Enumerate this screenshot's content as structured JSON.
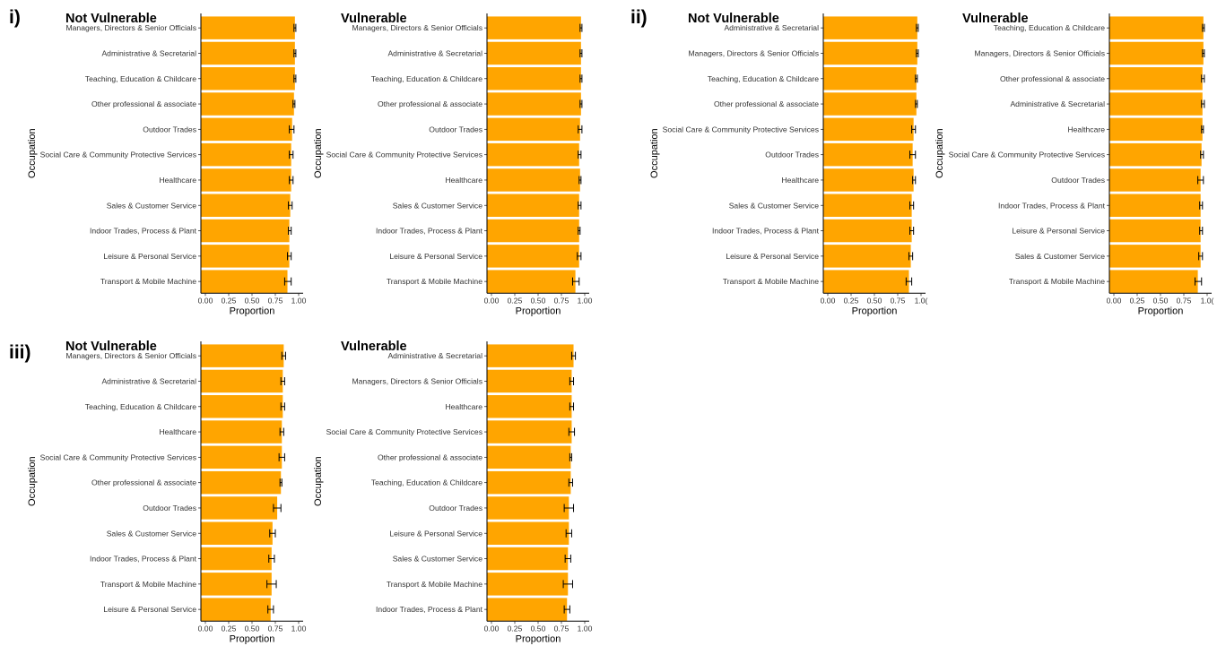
{
  "panel_labels": [
    "i)",
    "ii)",
    "iii)"
  ],
  "chart_data": [
    {
      "panel": "i)",
      "type": "bar",
      "orientation": "horizontal",
      "title": "Not Vulnerable",
      "xlabel": "Proportion",
      "ylabel": "Occupation",
      "xlim": [
        0,
        1
      ],
      "xticks": [
        "0.00",
        "0.25",
        "0.50",
        "0.75",
        "1.00"
      ],
      "bar_color": "#FFA500",
      "error_bars": true,
      "categories": [
        "Managers, Directors & Senior Officials",
        "Administrative & Secretarial",
        "Teaching, Education & Childcare",
        "Other professional & associate",
        "Outdoor Trades",
        "Social Care & Community Protective Services",
        "Healthcare",
        "Sales & Customer Service",
        "Indoor Trades, Process & Plant",
        "Leisure & Personal Service",
        "Transport & Mobile Machine"
      ],
      "values": [
        0.96,
        0.96,
        0.96,
        0.95,
        0.93,
        0.92,
        0.92,
        0.91,
        0.9,
        0.9,
        0.88
      ],
      "error_low": [
        0.95,
        0.95,
        0.95,
        0.94,
        0.9,
        0.9,
        0.9,
        0.89,
        0.89,
        0.88,
        0.85
      ],
      "error_high": [
        0.97,
        0.97,
        0.97,
        0.96,
        0.95,
        0.94,
        0.94,
        0.93,
        0.92,
        0.92,
        0.92
      ]
    },
    {
      "panel": "i)",
      "type": "bar",
      "orientation": "horizontal",
      "title": "Vulnerable",
      "xlabel": "Proportion",
      "ylabel": "Occupation",
      "xlim": [
        0,
        1
      ],
      "xticks": [
        "0.00",
        "0.25",
        "0.50",
        "0.75",
        "1.00"
      ],
      "bar_color": "#FFA500",
      "error_bars": true,
      "categories": [
        "Managers, Directors & Senior Officials",
        "Administrative & Secretarial",
        "Teaching, Education & Childcare",
        "Other professional & associate",
        "Outdoor Trades",
        "Social Care & Community Protective Services",
        "Healthcare",
        "Sales & Customer Service",
        "Indoor Trades, Process & Plant",
        "Leisure & Personal Service",
        "Transport & Mobile Machine"
      ],
      "values": [
        0.96,
        0.96,
        0.96,
        0.96,
        0.95,
        0.94,
        0.95,
        0.94,
        0.94,
        0.94,
        0.9
      ],
      "error_low": [
        0.95,
        0.95,
        0.95,
        0.95,
        0.93,
        0.93,
        0.94,
        0.93,
        0.93,
        0.92,
        0.87
      ],
      "error_high": [
        0.97,
        0.97,
        0.97,
        0.97,
        0.97,
        0.96,
        0.96,
        0.96,
        0.95,
        0.96,
        0.94
      ]
    },
    {
      "panel": "ii)",
      "type": "bar",
      "orientation": "horizontal",
      "title": "Not Vulnerable",
      "xlabel": "Proportion",
      "ylabel": "Occupation",
      "xlim": [
        0,
        1
      ],
      "xticks": [
        "0.00",
        "0.25",
        "0.50",
        "0.75",
        "1.0("
      ],
      "bar_color": "#FFA500",
      "error_bars": true,
      "categories": [
        "Administrative & Secretarial",
        "Managers, Directors & Senior Officials",
        "Teaching, Education & Childcare",
        "Other professional & associate",
        "Social Care & Community Protective Services",
        "Outdoor Trades",
        "Healthcare",
        "Sales & Customer Service",
        "Indoor Trades, Process & Plant",
        "Leisure & Personal Service",
        "Transport & Mobile Machine"
      ],
      "values": [
        0.96,
        0.96,
        0.95,
        0.95,
        0.92,
        0.91,
        0.92,
        0.9,
        0.9,
        0.89,
        0.87
      ],
      "error_low": [
        0.95,
        0.95,
        0.94,
        0.94,
        0.9,
        0.88,
        0.91,
        0.88,
        0.88,
        0.87,
        0.84
      ],
      "error_high": [
        0.97,
        0.97,
        0.96,
        0.96,
        0.94,
        0.94,
        0.94,
        0.92,
        0.92,
        0.91,
        0.9
      ]
    },
    {
      "panel": "ii)",
      "type": "bar",
      "orientation": "horizontal",
      "title": "Vulnerable",
      "xlabel": "Proportion",
      "ylabel": "Occupation",
      "xlim": [
        0,
        1
      ],
      "xticks": [
        "0.00",
        "0.25",
        "0.50",
        "0.75",
        "1.0("
      ],
      "bar_color": "#FFA500",
      "error_bars": true,
      "categories": [
        "Teaching, Education & Childcare",
        "Managers, Directors & Senior Officials",
        "Other professional & associate",
        "Administrative & Secretarial",
        "Healthcare",
        "Social Care & Community Protective Services",
        "Outdoor Trades",
        "Indoor Trades, Process & Plant",
        "Leisure & Personal Service",
        "Sales & Customer Service",
        "Transport & Mobile Machine"
      ],
      "values": [
        0.96,
        0.96,
        0.95,
        0.95,
        0.95,
        0.94,
        0.93,
        0.93,
        0.93,
        0.93,
        0.9
      ],
      "error_low": [
        0.95,
        0.95,
        0.94,
        0.94,
        0.94,
        0.93,
        0.9,
        0.92,
        0.92,
        0.91,
        0.87
      ],
      "error_high": [
        0.97,
        0.97,
        0.97,
        0.97,
        0.96,
        0.96,
        0.96,
        0.95,
        0.95,
        0.95,
        0.94
      ]
    },
    {
      "panel": "iii)",
      "type": "bar",
      "orientation": "horizontal",
      "title": "Not Vulnerable",
      "xlabel": "Proportion",
      "ylabel": "Occupation",
      "xlim": [
        0,
        1
      ],
      "xticks": [
        "0.00",
        "0.25",
        "0.50",
        "0.75",
        "1.00"
      ],
      "bar_color": "#FFA500",
      "error_bars": true,
      "categories": [
        "Managers, Directors & Senior Officials",
        "Administrative & Secretarial",
        "Teaching, Education & Childcare",
        "Healthcare",
        "Social Care & Community Protective Services",
        "Other professional & associate",
        "Outdoor Trades",
        "Sales & Customer Service",
        "Indoor Trades, Process & Plant",
        "Transport & Mobile Machine",
        "Leisure & Personal Service"
      ],
      "values": [
        0.84,
        0.83,
        0.83,
        0.82,
        0.82,
        0.81,
        0.77,
        0.72,
        0.71,
        0.71,
        0.7
      ],
      "error_low": [
        0.82,
        0.81,
        0.81,
        0.8,
        0.79,
        0.8,
        0.73,
        0.69,
        0.68,
        0.66,
        0.67
      ],
      "error_high": [
        0.86,
        0.85,
        0.85,
        0.84,
        0.85,
        0.82,
        0.81,
        0.75,
        0.74,
        0.76,
        0.73
      ]
    },
    {
      "panel": "iii)",
      "type": "bar",
      "orientation": "horizontal",
      "title": "Vulnerable",
      "xlabel": "Proportion",
      "ylabel": "Occupation",
      "xlim": [
        0,
        1
      ],
      "xticks": [
        "0.00",
        "0.25",
        "0.50",
        "0.75",
        "1.00"
      ],
      "bar_color": "#FFA500",
      "error_bars": true,
      "categories": [
        "Administrative & Secretarial",
        "Managers, Directors & Senior Officials",
        "Healthcare",
        "Social Care & Community Protective Services",
        "Other professional & associate",
        "Teaching, Education & Childcare",
        "Outdoor Trades",
        "Leisure & Personal Service",
        "Sales & Customer Service",
        "Transport & Mobile Machine",
        "Indoor Trades, Process & Plant"
      ],
      "values": [
        0.88,
        0.86,
        0.86,
        0.86,
        0.85,
        0.85,
        0.83,
        0.83,
        0.82,
        0.82,
        0.81
      ],
      "error_low": [
        0.86,
        0.84,
        0.84,
        0.83,
        0.84,
        0.83,
        0.78,
        0.8,
        0.79,
        0.77,
        0.78
      ],
      "error_high": [
        0.9,
        0.88,
        0.88,
        0.89,
        0.86,
        0.87,
        0.88,
        0.86,
        0.85,
        0.87,
        0.84
      ]
    }
  ]
}
